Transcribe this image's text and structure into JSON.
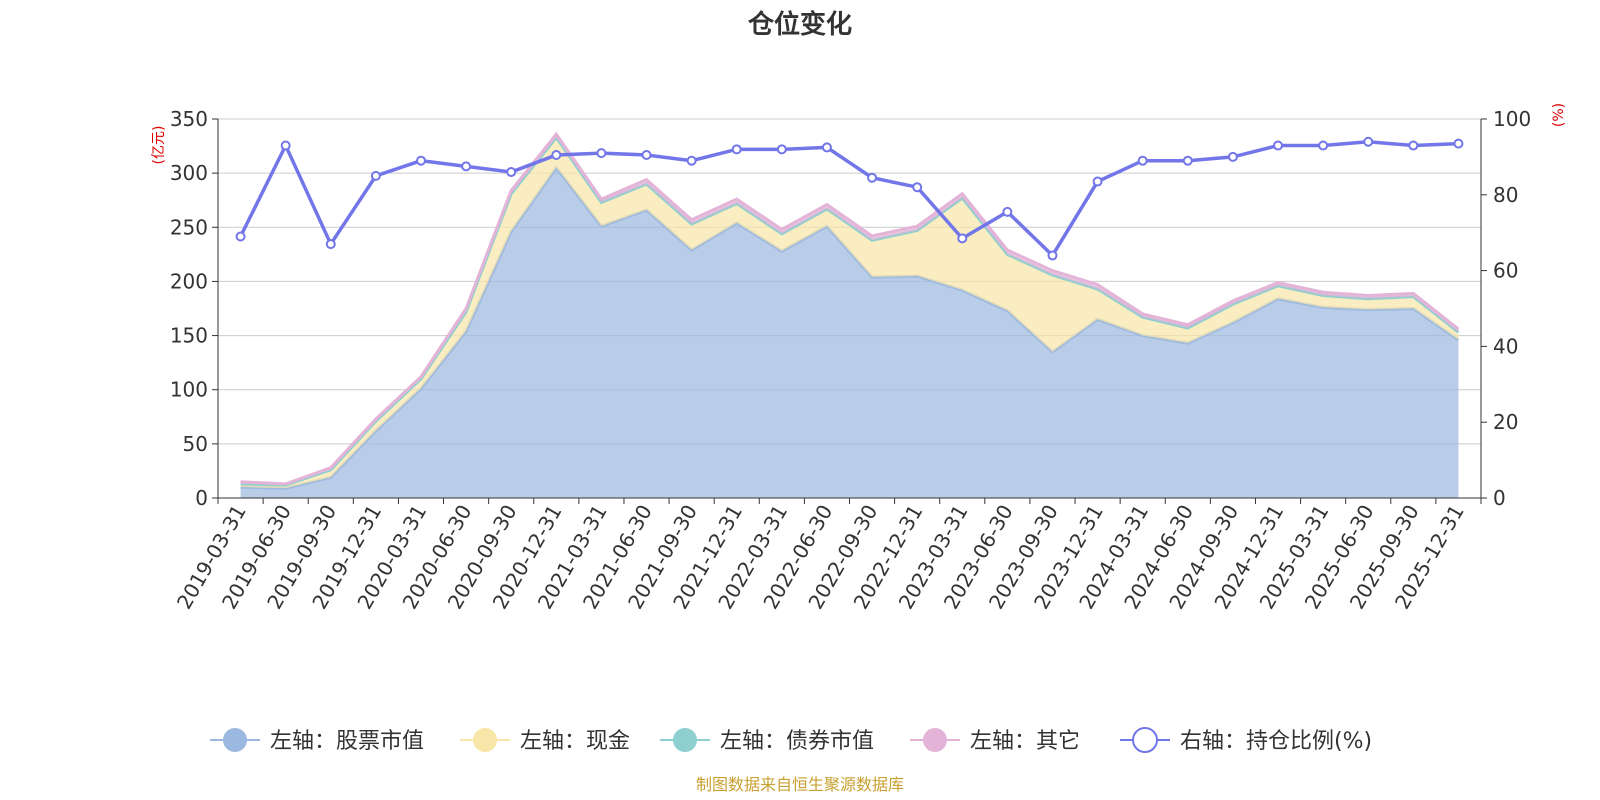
{
  "chart_data": {
    "type": "area",
    "title": "仓位变化",
    "y_left_unit": "(亿元)",
    "y_right_unit": "(%)",
    "y_left_range": [
      0,
      350
    ],
    "y_left_ticks": [
      "0",
      "50",
      "100",
      "150",
      "200",
      "250",
      "300",
      "350"
    ],
    "y_right_range": [
      0,
      100
    ],
    "y_right_ticks": [
      "0",
      "20",
      "40",
      "60",
      "80",
      "100"
    ],
    "grid": true,
    "legend_position": "bottom",
    "stacked": true,
    "categories": [
      "2019-03-31",
      "2019-06-30",
      "2019-09-30",
      "2019-12-31",
      "2020-03-31",
      "2020-06-30",
      "2020-09-30",
      "2020-12-31",
      "2021-03-31",
      "2021-06-30",
      "2021-09-30",
      "2021-12-31",
      "2022-03-31",
      "2022-06-30",
      "2022-09-30",
      "2022-12-31",
      "2023-03-31",
      "2023-06-30",
      "2023-09-30",
      "2023-12-31",
      "2024-03-31",
      "2024-06-30",
      "2024-09-30",
      "2024-12-31",
      "2025-03-31",
      "2025-06-30",
      "2025-09-30",
      "2025-12-31"
    ],
    "series": [
      {
        "name": "左轴：股票市值",
        "axis": "left",
        "color": "#9bb8e0",
        "values": [
          10,
          9,
          19,
          62,
          101,
          154,
          246,
          305,
          251,
          266,
          229,
          254,
          228,
          251,
          204,
          205,
          192,
          173,
          135,
          165,
          150,
          143,
          162,
          184,
          176,
          174,
          175,
          146
        ]
      },
      {
        "name": "左轴：现金",
        "axis": "left",
        "color": "#f8e6a8",
        "values": [
          3,
          3,
          7,
          9,
          9,
          18,
          35,
          28,
          22,
          24,
          24,
          18,
          16,
          16,
          34,
          42,
          85,
          52,
          71,
          28,
          17,
          14,
          17,
          12,
          11,
          10,
          11,
          7
        ]
      },
      {
        "name": "左轴：债券市值",
        "axis": "left",
        "color": "#8ed0d0",
        "values": [
          0,
          0,
          0,
          0,
          0,
          0,
          0,
          0,
          0,
          0,
          0,
          0,
          0,
          0,
          0,
          0,
          0,
          0,
          0,
          0,
          0,
          0,
          0,
          0,
          0,
          0,
          0,
          0
        ]
      },
      {
        "name": "左轴：其它",
        "axis": "left",
        "color": "#e4b4d8",
        "values": [
          2,
          1,
          2,
          2,
          2,
          3,
          3,
          3,
          3,
          4,
          4,
          4,
          4,
          4,
          4,
          4,
          4,
          4,
          4,
          4,
          3,
          3,
          3,
          3,
          3,
          3,
          3,
          3
        ]
      },
      {
        "name": "右轴：持仓比例(%)",
        "axis": "right",
        "color": "#7276e8",
        "values": [
          69,
          93,
          67,
          85,
          89,
          87.5,
          86,
          90.5,
          91,
          90.5,
          89,
          92,
          92,
          92.5,
          84.5,
          82,
          68.5,
          75.5,
          64,
          83.5,
          89,
          89,
          90,
          93,
          93,
          94,
          93,
          93.5
        ]
      }
    ]
  },
  "source_note": "制图数据来自恒生聚源数据库"
}
